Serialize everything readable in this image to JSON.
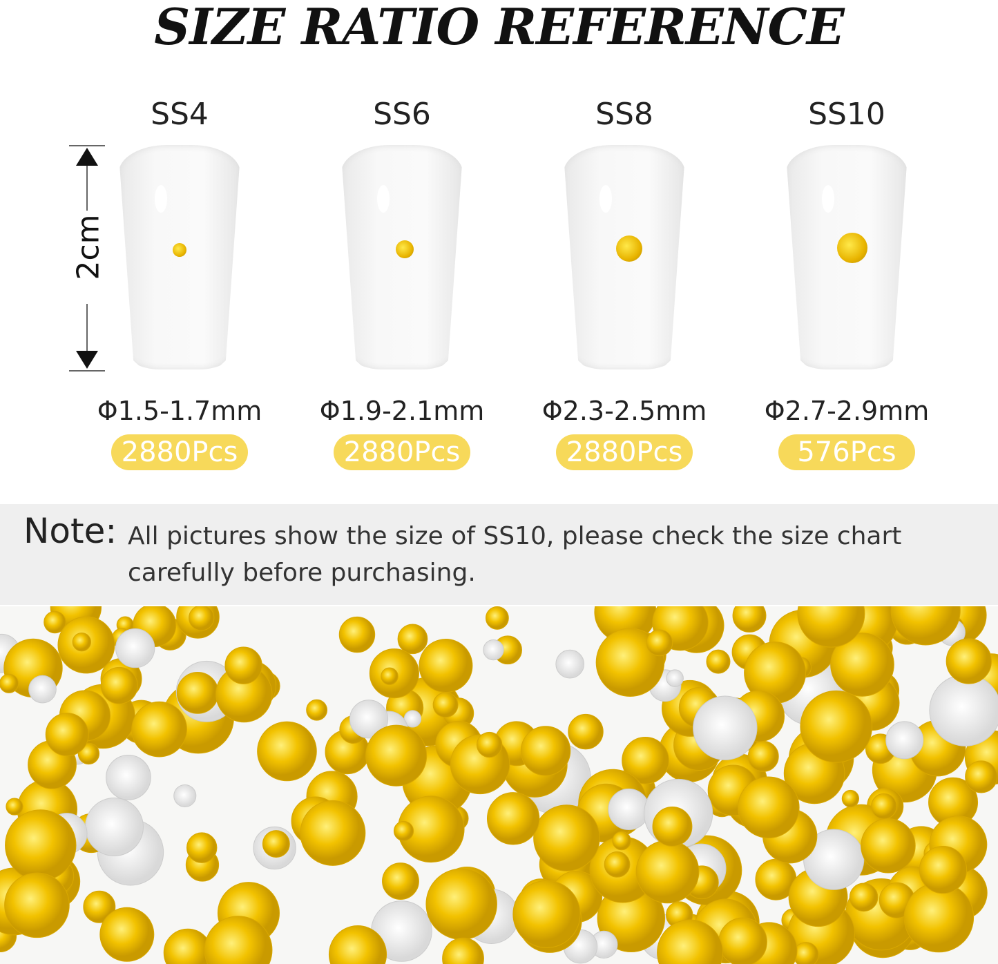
{
  "title": "SIZE RATIO REFERENCE",
  "scale_label": "2cm",
  "sizes": [
    {
      "label": "SS4",
      "diameter": "Φ1.5-1.7mm",
      "count": "2880Pcs"
    },
    {
      "label": "SS6",
      "diameter": "Φ1.9-2.1mm",
      "count": "2880Pcs"
    },
    {
      "label": "SS8",
      "diameter": "Φ2.3-2.5mm",
      "count": "2880Pcs"
    },
    {
      "label": "SS10",
      "diameter": "Φ2.7-2.9mm",
      "count": "576Pcs"
    }
  ],
  "note": {
    "label": "Note:",
    "text": "All pictures show the size of SS10, please check the size chart carefully before purchasing."
  },
  "colors": {
    "badge": "#f7d95a",
    "gem": "#f2c200",
    "note_band": "#efefef"
  }
}
